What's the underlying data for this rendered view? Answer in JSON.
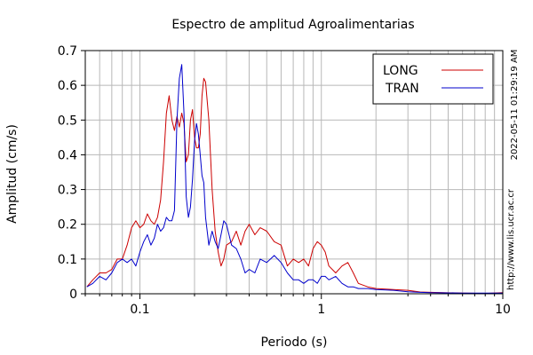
{
  "chart_data": {
    "type": "line",
    "title": "Espectro de amplitud Agroalimentarias",
    "xlabel": "Periodo (s)",
    "ylabel": "Amplitud (cm/s)",
    "x_scale": "log",
    "xlim": [
      0.05,
      10
    ],
    "ylim": [
      0,
      0.7
    ],
    "x_tick_labels": [
      "0.1",
      "1",
      "10"
    ],
    "y_tick_labels": [
      "0",
      "0.1",
      "0.2",
      "0.3",
      "0.4",
      "0.5",
      "0.6",
      "0.7"
    ],
    "grid": true,
    "legend_position": "top-right",
    "series": [
      {
        "name": "LONG",
        "color": "#cc0000",
        "points": [
          [
            0.051,
            0.02
          ],
          [
            0.055,
            0.04
          ],
          [
            0.06,
            0.06
          ],
          [
            0.065,
            0.06
          ],
          [
            0.07,
            0.07
          ],
          [
            0.075,
            0.1
          ],
          [
            0.08,
            0.1
          ],
          [
            0.085,
            0.14
          ],
          [
            0.09,
            0.19
          ],
          [
            0.095,
            0.21
          ],
          [
            0.1,
            0.19
          ],
          [
            0.105,
            0.2
          ],
          [
            0.11,
            0.23
          ],
          [
            0.115,
            0.21
          ],
          [
            0.12,
            0.2
          ],
          [
            0.125,
            0.22
          ],
          [
            0.13,
            0.27
          ],
          [
            0.135,
            0.38
          ],
          [
            0.14,
            0.52
          ],
          [
            0.145,
            0.57
          ],
          [
            0.15,
            0.5
          ],
          [
            0.155,
            0.47
          ],
          [
            0.16,
            0.51
          ],
          [
            0.165,
            0.48
          ],
          [
            0.17,
            0.52
          ],
          [
            0.175,
            0.49
          ],
          [
            0.18,
            0.38
          ],
          [
            0.185,
            0.4
          ],
          [
            0.19,
            0.5
          ],
          [
            0.195,
            0.53
          ],
          [
            0.2,
            0.45
          ],
          [
            0.205,
            0.42
          ],
          [
            0.21,
            0.42
          ],
          [
            0.215,
            0.46
          ],
          [
            0.22,
            0.57
          ],
          [
            0.225,
            0.62
          ],
          [
            0.23,
            0.61
          ],
          [
            0.24,
            0.5
          ],
          [
            0.25,
            0.3
          ],
          [
            0.26,
            0.18
          ],
          [
            0.27,
            0.12
          ],
          [
            0.28,
            0.08
          ],
          [
            0.29,
            0.1
          ],
          [
            0.3,
            0.14
          ],
          [
            0.32,
            0.15
          ],
          [
            0.34,
            0.18
          ],
          [
            0.36,
            0.14
          ],
          [
            0.38,
            0.18
          ],
          [
            0.4,
            0.2
          ],
          [
            0.43,
            0.17
          ],
          [
            0.46,
            0.19
          ],
          [
            0.5,
            0.18
          ],
          [
            0.55,
            0.15
          ],
          [
            0.6,
            0.14
          ],
          [
            0.65,
            0.08
          ],
          [
            0.7,
            0.1
          ],
          [
            0.75,
            0.09
          ],
          [
            0.8,
            0.1
          ],
          [
            0.85,
            0.08
          ],
          [
            0.9,
            0.13
          ],
          [
            0.95,
            0.15
          ],
          [
            1.0,
            0.14
          ],
          [
            1.05,
            0.12
          ],
          [
            1.1,
            0.08
          ],
          [
            1.2,
            0.06
          ],
          [
            1.3,
            0.08
          ],
          [
            1.4,
            0.09
          ],
          [
            1.5,
            0.06
          ],
          [
            1.6,
            0.03
          ],
          [
            1.8,
            0.02
          ],
          [
            2.0,
            0.015
          ],
          [
            2.5,
            0.012
          ],
          [
            3.0,
            0.01
          ],
          [
            3.5,
            0.005
          ],
          [
            4.0,
            0.004
          ],
          [
            6.0,
            0.002
          ],
          [
            8.0,
            0.001
          ],
          [
            10.0,
            0.003
          ]
        ]
      },
      {
        "name": "TRAN",
        "color": "#0000cc",
        "points": [
          [
            0.051,
            0.02
          ],
          [
            0.055,
            0.03
          ],
          [
            0.06,
            0.05
          ],
          [
            0.065,
            0.04
          ],
          [
            0.07,
            0.06
          ],
          [
            0.075,
            0.09
          ],
          [
            0.08,
            0.1
          ],
          [
            0.085,
            0.09
          ],
          [
            0.09,
            0.1
          ],
          [
            0.095,
            0.08
          ],
          [
            0.1,
            0.12
          ],
          [
            0.105,
            0.15
          ],
          [
            0.11,
            0.17
          ],
          [
            0.115,
            0.14
          ],
          [
            0.12,
            0.16
          ],
          [
            0.125,
            0.2
          ],
          [
            0.13,
            0.18
          ],
          [
            0.135,
            0.19
          ],
          [
            0.14,
            0.22
          ],
          [
            0.145,
            0.21
          ],
          [
            0.15,
            0.21
          ],
          [
            0.155,
            0.24
          ],
          [
            0.16,
            0.5
          ],
          [
            0.165,
            0.62
          ],
          [
            0.17,
            0.66
          ],
          [
            0.175,
            0.52
          ],
          [
            0.18,
            0.28
          ],
          [
            0.185,
            0.22
          ],
          [
            0.19,
            0.25
          ],
          [
            0.195,
            0.33
          ],
          [
            0.2,
            0.44
          ],
          [
            0.205,
            0.49
          ],
          [
            0.21,
            0.46
          ],
          [
            0.215,
            0.4
          ],
          [
            0.22,
            0.34
          ],
          [
            0.225,
            0.32
          ],
          [
            0.23,
            0.22
          ],
          [
            0.24,
            0.14
          ],
          [
            0.25,
            0.18
          ],
          [
            0.26,
            0.15
          ],
          [
            0.27,
            0.13
          ],
          [
            0.28,
            0.17
          ],
          [
            0.29,
            0.21
          ],
          [
            0.3,
            0.2
          ],
          [
            0.32,
            0.14
          ],
          [
            0.34,
            0.13
          ],
          [
            0.36,
            0.1
          ],
          [
            0.38,
            0.06
          ],
          [
            0.4,
            0.07
          ],
          [
            0.43,
            0.06
          ],
          [
            0.46,
            0.1
          ],
          [
            0.5,
            0.09
          ],
          [
            0.55,
            0.11
          ],
          [
            0.6,
            0.09
          ],
          [
            0.65,
            0.06
          ],
          [
            0.7,
            0.04
          ],
          [
            0.75,
            0.04
          ],
          [
            0.8,
            0.03
          ],
          [
            0.85,
            0.04
          ],
          [
            0.9,
            0.04
          ],
          [
            0.95,
            0.03
          ],
          [
            1.0,
            0.05
          ],
          [
            1.05,
            0.05
          ],
          [
            1.1,
            0.04
          ],
          [
            1.2,
            0.05
          ],
          [
            1.3,
            0.03
          ],
          [
            1.4,
            0.02
          ],
          [
            1.5,
            0.02
          ],
          [
            1.6,
            0.015
          ],
          [
            1.8,
            0.015
          ],
          [
            2.0,
            0.012
          ],
          [
            2.5,
            0.01
          ],
          [
            3.0,
            0.006
          ],
          [
            3.5,
            0.004
          ],
          [
            4.0,
            0.003
          ],
          [
            6.0,
            0.002
          ],
          [
            8.0,
            0.002
          ],
          [
            10.0,
            0.002
          ]
        ]
      }
    ]
  },
  "side_texts": {
    "timestamp": "2022-05-11 01:29:19 AM",
    "url": "http://www.lis.ucr.ac.cr"
  }
}
